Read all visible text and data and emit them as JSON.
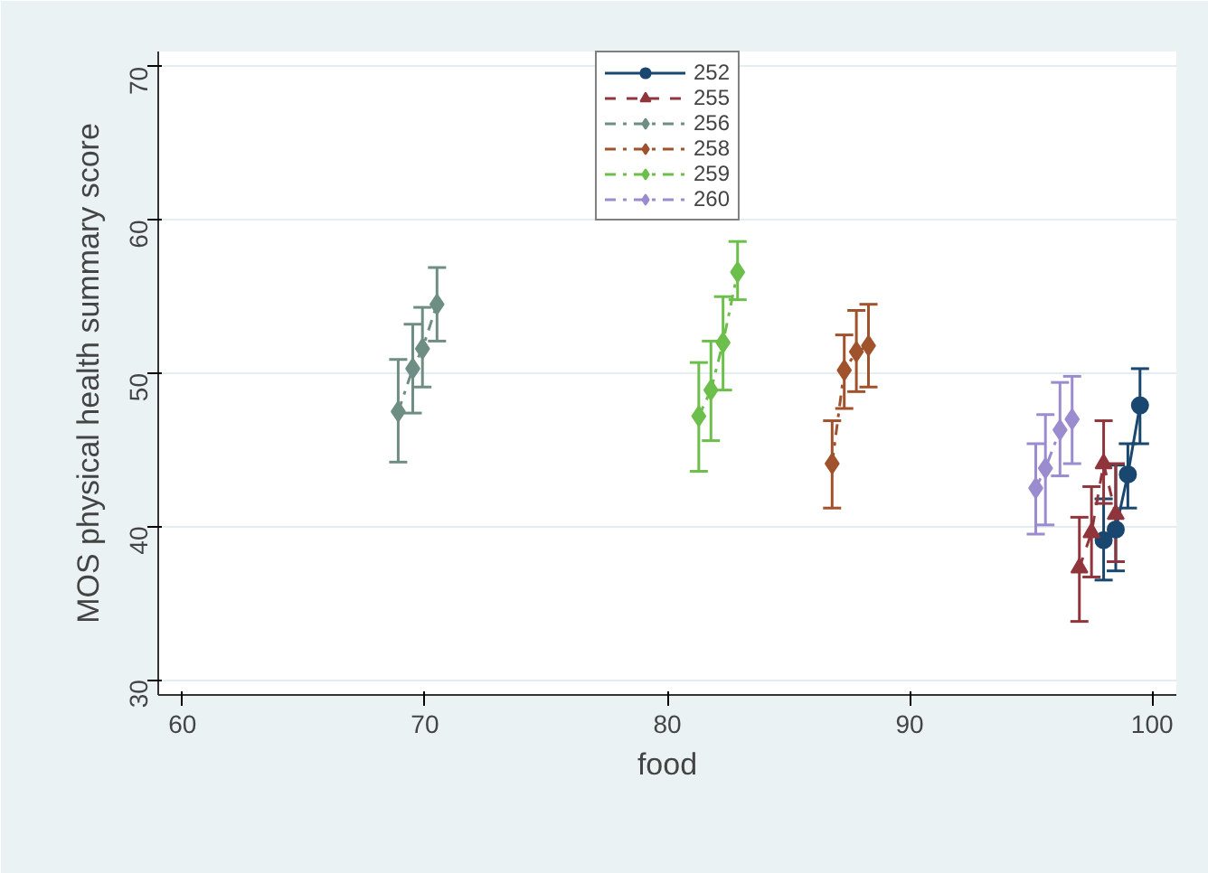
{
  "chart_data": {
    "type": "line",
    "xlabel": "food",
    "ylabel": "MOS physical health summary score",
    "xlim": [
      59,
      101
    ],
    "ylim": [
      29,
      71
    ],
    "xticks": [
      60,
      70,
      80,
      90,
      100
    ],
    "yticks": [
      30,
      40,
      50,
      60,
      70
    ],
    "grid": "y",
    "legend": "top",
    "series": [
      {
        "name": "252",
        "color": "#1a476f",
        "marker": "circle",
        "line_style": "solid",
        "x": [
          98.0,
          98.5,
          99.0,
          99.5
        ],
        "values": [
          39.1,
          39.8,
          43.4,
          47.9
        ],
        "errors": [
          [
            36.5,
            41.8
          ],
          [
            37.1,
            44.0
          ],
          [
            41.2,
            45.4
          ],
          [
            45.4,
            50.3
          ]
        ]
      },
      {
        "name": "255",
        "color": "#90353b",
        "marker": "triangle",
        "line_style": "dashed",
        "x": [
          97.0,
          97.5,
          98.0,
          98.5
        ],
        "values": [
          37.3,
          39.6,
          44.1,
          40.8
        ],
        "errors": [
          [
            33.8,
            40.6
          ],
          [
            36.7,
            42.6
          ],
          [
            41.5,
            46.9
          ],
          [
            37.7,
            44.1
          ]
        ]
      },
      {
        "name": "256",
        "color": "#6e8e84",
        "marker": "diamond",
        "line_style": "dashdot",
        "x": [
          68.9,
          69.5,
          69.9,
          70.5
        ],
        "values": [
          47.5,
          50.3,
          51.6,
          54.5
        ],
        "errors": [
          [
            44.2,
            50.9
          ],
          [
            47.4,
            53.2
          ],
          [
            49.1,
            54.3
          ],
          [
            52.1,
            56.9
          ]
        ]
      },
      {
        "name": "258",
        "color": "#a0522d",
        "marker": "diamond",
        "line_style": "dashdot",
        "x": [
          86.8,
          87.3,
          87.8,
          88.3
        ],
        "values": [
          44.1,
          50.2,
          51.4,
          51.8
        ],
        "errors": [
          [
            41.2,
            46.9
          ],
          [
            47.7,
            52.5
          ],
          [
            48.8,
            54.1
          ],
          [
            49.1,
            54.5
          ]
        ]
      },
      {
        "name": "259",
        "color": "#6cbf4a",
        "marker": "diamond",
        "line_style": "dashdot",
        "x": [
          81.3,
          81.8,
          82.3,
          82.9
        ],
        "values": [
          47.2,
          48.9,
          52.0,
          56.6
        ],
        "errors": [
          [
            43.6,
            50.7
          ],
          [
            45.6,
            52.1
          ],
          [
            48.9,
            55.0
          ],
          [
            54.8,
            58.6
          ]
        ]
      },
      {
        "name": "260",
        "color": "#9a8ccf",
        "marker": "diamond",
        "line_style": "dashdot",
        "x": [
          95.2,
          95.6,
          96.2,
          96.7
        ],
        "values": [
          42.5,
          43.8,
          46.3,
          47.0
        ],
        "errors": [
          [
            39.5,
            45.4
          ],
          [
            40.1,
            47.3
          ],
          [
            43.3,
            49.4
          ],
          [
            44.1,
            49.8
          ]
        ]
      }
    ]
  }
}
